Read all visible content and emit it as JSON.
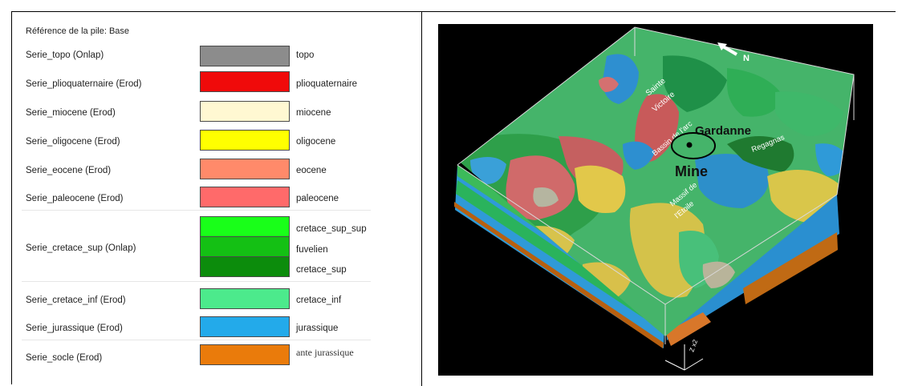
{
  "legend": {
    "title": "Référence de la pile: Base",
    "series": [
      {
        "label": "Serie_topo (Onlap)",
        "layers": [
          {
            "name": "topo",
            "color": "#8c8c8c"
          }
        ]
      },
      {
        "label": "Serie_plioquaternaire (Erod)",
        "layers": [
          {
            "name": "plioquaternaire",
            "color": "#f00a0a"
          }
        ]
      },
      {
        "label": "Serie_miocene (Erod)",
        "layers": [
          {
            "name": "miocene",
            "color": "#fff8d2"
          }
        ]
      },
      {
        "label": "Serie_oligocene (Erod)",
        "layers": [
          {
            "name": "oligocene",
            "color": "#ffff00"
          }
        ]
      },
      {
        "label": "Serie_eocene (Erod)",
        "layers": [
          {
            "name": "eocene",
            "color": "#ff8a6a"
          }
        ]
      },
      {
        "label": "Serie_paleocene (Erod)",
        "layers": [
          {
            "name": "paleocene",
            "color": "#ff6a6a"
          }
        ]
      },
      {
        "label": "Serie_cretace_sup (Onlap)",
        "layers": [
          {
            "name": "cretace_sup_sup",
            "color": "#19ff19"
          },
          {
            "name": "fuvelien",
            "color": "#14c014"
          },
          {
            "name": "cretace_sup",
            "color": "#0c8c0c"
          }
        ]
      },
      {
        "label": "Serie_cretace_inf (Erod)",
        "layers": [
          {
            "name": "cretace_inf",
            "color": "#4cea8c"
          }
        ]
      },
      {
        "label": "Serie_jurassique (Erod)",
        "layers": [
          {
            "name": "jurassique",
            "color": "#23aaea"
          }
        ]
      },
      {
        "label": "Serie_socle (Erod)",
        "layers": [
          {
            "name": "ante jurassique",
            "color": "#ea7b0b"
          }
        ]
      }
    ]
  },
  "map": {
    "north_label": "N",
    "places": {
      "sainte": "Sainte",
      "victoire": "Victoire",
      "gardanne": "Gardanne",
      "bassin": "Bassin de l'arc",
      "regagnas": "Regagnas",
      "mine": "Mine",
      "massif": "Massif de",
      "etoile": "l'Etoile"
    },
    "axis_label": "Z x2"
  }
}
